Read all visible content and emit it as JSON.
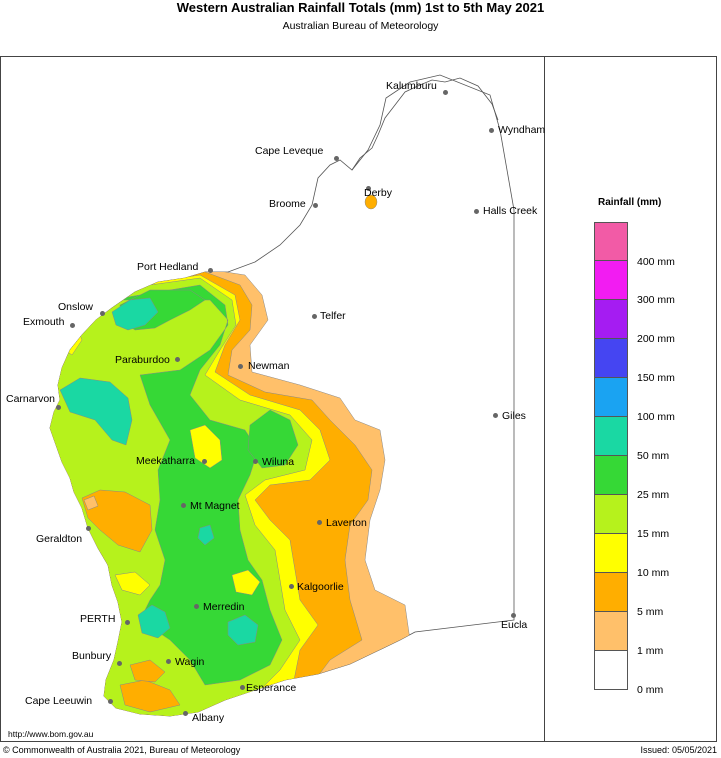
{
  "header": {
    "title": "Western Australian Rainfall Totals (mm) 1st to 5th May 2021",
    "subtitle": "Australian Bureau of Meteorology"
  },
  "legend": {
    "title": "Rainfall (mm)",
    "bins": [
      {
        "label": "",
        "color": "#f25ba6"
      },
      {
        "label": "400 mm",
        "color": "#f21cf2"
      },
      {
        "label": "300 mm",
        "color": "#a51cf2"
      },
      {
        "label": "200 mm",
        "color": "#4545f2"
      },
      {
        "label": "150 mm",
        "color": "#1aa3f2"
      },
      {
        "label": "100 mm",
        "color": "#1ad8a3"
      },
      {
        "label": "50 mm",
        "color": "#36d836"
      },
      {
        "label": "25 mm",
        "color": "#b6f21c"
      },
      {
        "label": "15 mm",
        "color": "#ffff00"
      },
      {
        "label": "10 mm",
        "color": "#ffae00"
      },
      {
        "label": "5 mm",
        "color": "#ffc06a"
      },
      {
        "label": "1 mm",
        "color": "#ffffff"
      },
      {
        "label": "0 mm",
        "color": ""
      }
    ]
  },
  "places": [
    {
      "name": "Kalumburu"
    },
    {
      "name": "Wyndham"
    },
    {
      "name": "Cape Leveque"
    },
    {
      "name": "Derby"
    },
    {
      "name": "Broome"
    },
    {
      "name": "Halls Creek"
    },
    {
      "name": "Port Hedland"
    },
    {
      "name": "Onslow"
    },
    {
      "name": "Exmouth"
    },
    {
      "name": "Telfer"
    },
    {
      "name": "Paraburdoo"
    },
    {
      "name": "Newman"
    },
    {
      "name": "Carnarvon"
    },
    {
      "name": "Giles"
    },
    {
      "name": "Meekatharra"
    },
    {
      "name": "Wiluna"
    },
    {
      "name": "Mt Magnet"
    },
    {
      "name": "Laverton"
    },
    {
      "name": "Geraldton"
    },
    {
      "name": "Kalgoorlie"
    },
    {
      "name": "Merredin"
    },
    {
      "name": "PERTH"
    },
    {
      "name": "Eucla"
    },
    {
      "name": "Bunbury"
    },
    {
      "name": "Wagin"
    },
    {
      "name": "Esperance"
    },
    {
      "name": "Cape Leeuwin"
    },
    {
      "name": "Albany"
    }
  ],
  "footer": {
    "url": "http://www.bom.gov.au",
    "copyright": "© Commonwealth of Australia 2021, Bureau of Meteorology",
    "issued": "Issued: 05/05/2021"
  },
  "colors": {
    "c1_5": "#ffc06a",
    "c5_10": "#ffae00",
    "c10_15": "#ffff00",
    "c15_25": "#b6f21c",
    "c25_50": "#36d836",
    "c50_100": "#1ad8a3"
  }
}
